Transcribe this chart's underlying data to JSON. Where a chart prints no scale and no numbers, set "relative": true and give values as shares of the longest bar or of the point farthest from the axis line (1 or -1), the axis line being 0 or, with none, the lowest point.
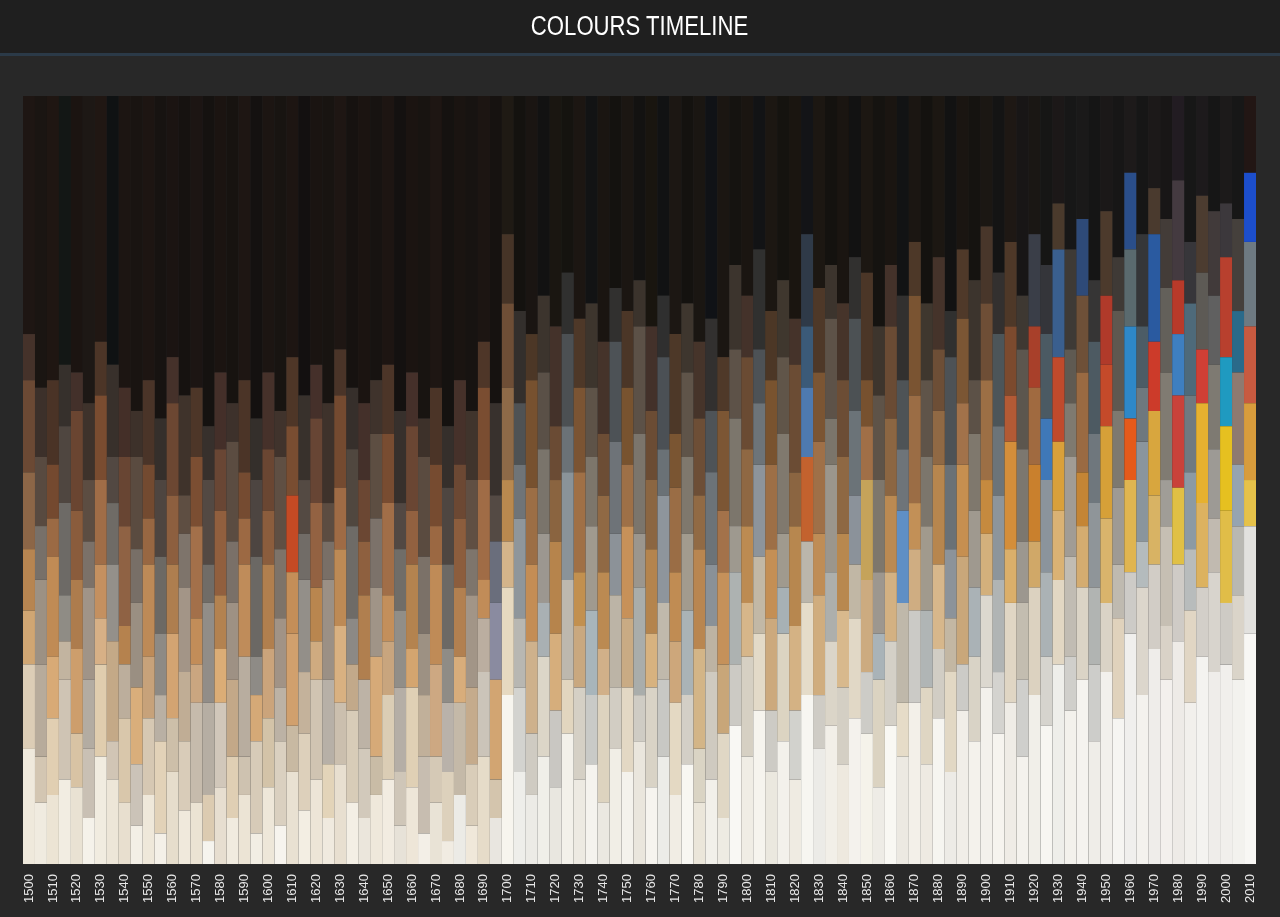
{
  "chart_data": {
    "type": "bar",
    "title": "COLOURS TIMELINE",
    "relative": true,
    "stacked": true,
    "categories": [
      "1500",
      null,
      "1510",
      null,
      "1520",
      null,
      "1530",
      null,
      "1540",
      null,
      "1550",
      null,
      "1560",
      null,
      "1570",
      null,
      "1580",
      null,
      "1590",
      null,
      "1600",
      null,
      "1610",
      null,
      "1620",
      null,
      "1630",
      null,
      "1640",
      null,
      "1650",
      null,
      "1660",
      null,
      "1670",
      null,
      "1680",
      null,
      "1690",
      null,
      "1700",
      null,
      "1710",
      null,
      "1720",
      null,
      "1730",
      null,
      "1740",
      null,
      "1750",
      null,
      "1760",
      null,
      "1770",
      null,
      "1780",
      null,
      "1790",
      null,
      "1800",
      null,
      "1810",
      null,
      "1820",
      null,
      "1830",
      null,
      "1840",
      null,
      "1850",
      null,
      "1860",
      null,
      "1870",
      null,
      "1880",
      null,
      "1890",
      null,
      "1900",
      null,
      "1910",
      null,
      "1920",
      null,
      "1930",
      null,
      "1940",
      null,
      "1950",
      null,
      "1960",
      null,
      "1970",
      null,
      "1980",
      null,
      "1990",
      null,
      "2000",
      null,
      "2010"
    ],
    "series": [
      {
        "values": [
          0.15,
          0.08,
          0.09,
          0.11,
          0.1,
          0.06,
          0.14,
          0.11,
          0.08,
          0.05,
          0.09,
          0.04,
          0.12,
          0.07,
          0.08,
          0.03,
          0.1,
          0.06,
          0.09,
          0.04,
          0.1,
          0.05,
          0.12,
          0.07,
          0.11,
          0.06,
          0.13,
          0.08,
          0.06,
          0.09,
          0.11,
          0.05,
          0.1,
          0.04,
          0.08,
          0.03,
          0.09,
          0.05,
          0.14,
          0.06,
          0.22,
          0.12,
          0.09,
          0.14,
          0.1,
          0.17,
          0.11,
          0.13,
          0.08,
          0.15,
          0.12,
          0.16,
          0.1,
          0.14,
          0.09,
          0.13,
          0.08,
          0.11,
          0.06,
          0.18,
          0.14,
          0.2,
          0.12,
          0.16,
          0.11,
          0.22,
          0.15,
          0.18,
          0.13,
          0.19,
          0.17,
          0.1,
          0.18,
          0.14,
          0.21,
          0.13,
          0.19,
          0.12,
          0.2,
          0.16,
          0.23,
          0.17,
          0.21,
          0.14,
          0.22,
          0.18,
          0.26,
          0.2,
          0.24,
          0.16,
          0.25,
          0.19,
          0.3,
          0.22,
          0.28,
          0.24,
          0.29,
          0.21,
          0.27,
          0.25,
          0.26,
          0.24,
          0.3
        ],
        "colors": [
          "#efe9dc",
          "#f0ebe0",
          "#ece4d4",
          "#f2ede2",
          "#e9e2d3",
          "#f5f2ea",
          "#f1ece0",
          "#ede6d8",
          "#e8dfcf",
          "#f3efe6",
          "#efe8da",
          "#f4f0e8",
          "#e6ddcc",
          "#f0e9dc",
          "#ebe3d3",
          "#f6f4ee",
          "#e7ded0",
          "#f1ebdf",
          "#ece4d5",
          "#f2eee4",
          "#eee7d9",
          "#f7f4ee",
          "#e9e1d2",
          "#f3eee3",
          "#ede5d7",
          "#f0eadf",
          "#e8dfd0",
          "#f4efe5",
          "#ebe6dc",
          "#efe8db",
          "#f2ece1",
          "#e7e2d8",
          "#eee6d8",
          "#f3efe7",
          "#e9e3d6",
          "#f1ece2",
          "#ecebe6",
          "#f0e8da",
          "#e6dcc9",
          "#e9e6e0",
          "#f7f5ee",
          "#eeeeea",
          "#ecebe6",
          "#f0efe9",
          "#e9e7e0",
          "#f3f1ea",
          "#edeae2",
          "#f5f3ee",
          "#ebe8e1",
          "#f1eee6",
          "#f4f2ec",
          "#eae6dd",
          "#f6f4ef",
          "#ecece8",
          "#f1ede4",
          "#f8f7f2",
          "#ebe6da",
          "#f2f0ea",
          "#eeebe3",
          "#f9f8f4",
          "#f0ede5",
          "#f6f4ee",
          "#ebe8df",
          "#f3f1eb",
          "#efebe2",
          "#f7f6f1",
          "#ecebe7",
          "#f2efe8",
          "#eee9df",
          "#f4f2ed",
          "#f5f3ea",
          "#eeece6",
          "#f9f8f3",
          "#ece9e2",
          "#f3f0e9",
          "#eeeae2",
          "#f6f5f0",
          "#edebe6",
          "#f1eee8",
          "#f4f2ec",
          "#f3f1ec",
          "#f6f4ef",
          "#efece6",
          "#f4f2ed",
          "#f1efe9",
          "#f7f6f2",
          "#eeeeea",
          "#f3f1ec",
          "#f5f3ef",
          "#efede8",
          "#f2f0ec",
          "#f6f5f2",
          "#f0efed",
          "#f4f2ee",
          "#efedea",
          "#f3f0ed",
          "#eeebe7",
          "#f2f0ec",
          "#f4f3f0",
          "#efedea",
          "#f1efec",
          "#f3f2ee",
          "#f8f7f4"
        ]
      },
      {
        "values": [
          0.11,
          0.06,
          0.1,
          0.13,
          0.07,
          0.09,
          0.12,
          0.05,
          0.11,
          0.08,
          0.1,
          0.12,
          0.07,
          0.09,
          0.13,
          0.06,
          0.11,
          0.08,
          0.05,
          0.12,
          0.09,
          0.11,
          0.06,
          0.1,
          0.13,
          0.07,
          0.08,
          0.12,
          0.09,
          0.05,
          0.11,
          0.07,
          0.13,
          0.1,
          0.06,
          0.09,
          0.12,
          0.08,
          0.11,
          0.05,
          0.14,
          0.11,
          0.08,
          0.13,
          0.1,
          0.07,
          0.12,
          0.09,
          0.14,
          0.08,
          0.11,
          0.06,
          0.13,
          0.1,
          0.12,
          0.09,
          0.07,
          0.14,
          0.11,
          0.08,
          0.13,
          0.1,
          0.08,
          0.14,
          0.09,
          0.12,
          0.07,
          0.11,
          0.1,
          0.13,
          0.08,
          0.14,
          0.11,
          0.07,
          0.12,
          0.1,
          0.09,
          0.13,
          0.06,
          0.11,
          0.12,
          0.08,
          0.13,
          0.1,
          0.14,
          0.09,
          0.11,
          0.07,
          0.12,
          0.1,
          0.09,
          0.13,
          0.08,
          0.14,
          0.11,
          0.07,
          0.1,
          0.12,
          0.09,
          0.13,
          0.08,
          0.11,
          0.14
        ],
        "colors": [
          "#dccdb6",
          "#d3c6b2",
          "#e1cfb2",
          "#cfc4b4",
          "#d8c3a4",
          "#c9c0b4",
          "#e0cdae",
          "#d1c5b5",
          "#d9c7ab",
          "#cbc3b8",
          "#d6c8b3",
          "#e2d2b8",
          "#cdbfa9",
          "#d9ccb9",
          "#c6bbac",
          "#dccbb1",
          "#d1c7ba",
          "#e0cfb4",
          "#cec2b0",
          "#d7cbb8",
          "#d3c3a8",
          "#dad0c0",
          "#c8b9a2",
          "#ddd0bb",
          "#d0c4b2",
          "#e3d4b9",
          "#cbbfae",
          "#d8ccb8",
          "#d2c9bb",
          "#c9bca6",
          "#dbcdb5",
          "#cfc6b8",
          "#e0d0b5",
          "#c7bdb0",
          "#d5c9b6",
          "#ddd1bc",
          "#c4b9a8",
          "#d9cdb9",
          "#cbc4b9",
          "#d4c5ad",
          "#e6d9c0",
          "#d3d3cf",
          "#cfcbc2",
          "#dcd6c8",
          "#c9c7c2",
          "#e2d6bf",
          "#d5d0c5",
          "#c9cac7",
          "#ddd3bf",
          "#d2cdc3",
          "#e3d8c4",
          "#cfccc4",
          "#d9d3c6",
          "#c8c8c4",
          "#e4d9c3",
          "#d3cfc6",
          "#dad4c4",
          "#cfcac0",
          "#e0d7c5",
          "#cccac4",
          "#d6d0c3",
          "#e3dac8",
          "#cdcbc5",
          "#dcd4c2",
          "#d2d2cd",
          "#e5dcc9",
          "#cfccc5",
          "#dbd5c8",
          "#d4cfc4",
          "#e1d8c6",
          "#cdccc7",
          "#dbd3c1",
          "#d4d0c7",
          "#e6dcc8",
          "#cbcac6",
          "#dfd6c3",
          "#d1cdc4",
          "#e2d8c4",
          "#cccbc7",
          "#d9d3c6",
          "#dcd8cf",
          "#d4d3cf",
          "#e0d6c4",
          "#cfcfcc",
          "#dcd2c0",
          "#d6d4ce",
          "#e2d7c3",
          "#d0cfcb",
          "#dbd4c6",
          "#cdcdca",
          "#dad3c6",
          "#e0d2bc",
          "#cdcbc7",
          "#dcd6cc",
          "#d2cdc6",
          "#d9d2c7",
          "#cfcbc6",
          "#e1d6c4",
          "#d3cfc9",
          "#d8d4cd",
          "#cecbc5",
          "#dad4c9",
          "#e2e1de"
        ]
      },
      {
        "values": [
          0.07,
          0.12,
          0.08,
          0.05,
          0.11,
          0.09,
          0.06,
          0.13,
          0.07,
          0.1,
          0.08,
          0.06,
          0.11,
          0.09,
          0.05,
          0.12,
          0.07,
          0.1,
          0.13,
          0.06,
          0.09,
          0.07,
          0.12,
          0.08,
          0.05,
          0.11,
          0.1,
          0.06,
          0.09,
          0.13,
          0.07,
          0.11,
          0.05,
          0.08,
          0.12,
          0.09,
          0.06,
          0.1,
          0.07,
          0.13,
          0.06,
          0.09,
          0.12,
          0.07,
          0.1,
          0.13,
          0.08,
          0.11,
          0.06,
          0.12,
          0.09,
          0.14,
          0.07,
          0.1,
          0.08,
          0.11,
          0.13,
          0.06,
          0.09,
          0.12,
          0.07,
          0.1,
          0.12,
          0.06,
          0.11,
          0.08,
          0.13,
          0.09,
          0.1,
          0.07,
          0.12,
          0.06,
          0.09,
          0.13,
          0.08,
          0.1,
          0.11,
          0.07,
          0.14,
          0.09,
          0.08,
          0.12,
          0.07,
          0.1,
          0.06,
          0.11,
          0.09,
          0.13,
          0.08,
          0.1,
          0.11,
          0.07,
          0.12,
          0.06,
          0.09,
          0.13,
          0.1,
          0.08,
          0.11,
          0.07,
          0.12,
          0.09,
          0.06
        ],
        "colors": [
          "#d0a673",
          "#b7ab9b",
          "#d8aa76",
          "#c2b4a0",
          "#cd9e6c",
          "#b3aca2",
          "#d7b086",
          "#c4a987",
          "#bcae9c",
          "#d9ae7b",
          "#c7a27a",
          "#b9b0a4",
          "#d3a472",
          "#c0ad95",
          "#caa680",
          "#b6aea3",
          "#dbad76",
          "#c3a888",
          "#b8ad9f",
          "#d5a977",
          "#cba47b",
          "#bcb2a5",
          "#d1a06d",
          "#c4b29b",
          "#cfab80",
          "#b7b0a7",
          "#d9b181",
          "#c2a98a",
          "#bdb3a6",
          "#d6aa78",
          "#c8a57e",
          "#b5aea6",
          "#d4a56f",
          "#c1b09a",
          "#cda882",
          "#b9b2aa",
          "#d8ad7b",
          "#c5ab8c",
          "#bbaea0",
          "#d2a572",
          "#d4b48a",
          "#b8b7b2",
          "#ceb18c",
          "#a9b0b3",
          "#d6ae7c",
          "#bdb8ae",
          "#c9a87f",
          "#a8b5bb",
          "#d1b089",
          "#bcb4a6",
          "#c9ab84",
          "#a9adab",
          "#d7b27f",
          "#c0b9ac",
          "#cda77b",
          "#aab3b6",
          "#d3b587",
          "#bdb3a3",
          "#c8a679",
          "#adb2b1",
          "#d6b68a",
          "#c2b8a6",
          "#cca97d",
          "#a7b1b5",
          "#d4b284",
          "#bbb6ab",
          "#d0ad7e",
          "#adafac",
          "#d8b98d",
          "#c1b7a5",
          "#ccab80",
          "#a9b3b8",
          "#d3b182",
          "#bfb8aa",
          "#cfad82",
          "#b0b5b5",
          "#d7b78b",
          "#c3b7a3",
          "#c9a77a",
          "#aab2b6",
          "#d3b07c",
          "#b0b4b4",
          "#dbaf6a",
          "#c3bdb0",
          "#d0a868",
          "#abb2b5",
          "#dab274",
          "#c1bcb3",
          "#d4ac70",
          "#b1b4b2",
          "#d9b46c",
          "#bfbab0",
          "#e0b550",
          "#b4bbbd",
          "#d8b364",
          "#c6bfb3",
          "#e0c045",
          "#b8bcbc",
          "#dcb260",
          "#c1bab0",
          "#e0bd48",
          "#b9b8b2",
          "#e6c24a"
        ]
      },
      {
        "values": [
          0.08,
          0.11,
          0.13,
          0.06,
          0.09,
          0.12,
          0.07,
          0.1,
          0.05,
          0.11,
          0.12,
          0.08,
          0.09,
          0.11,
          0.06,
          0.13,
          0.07,
          0.1,
          0.12,
          0.05,
          0.11,
          0.09,
          0.08,
          0.12,
          0.07,
          0.13,
          0.1,
          0.06,
          0.11,
          0.09,
          0.06,
          0.1,
          0.11,
          0.08,
          0.13,
          0.07,
          0.09,
          0.12,
          0.05,
          0.1,
          0.08,
          0.13,
          0.1,
          0.09,
          0.12,
          0.14,
          0.07,
          0.11,
          0.1,
          0.08,
          0.12,
          0.07,
          0.11,
          0.14,
          0.09,
          0.1,
          0.13,
          0.08,
          0.12,
          0.06,
          0.1,
          0.12,
          0.09,
          0.07,
          0.13,
          0.11,
          0.08,
          0.14,
          0.1,
          0.09,
          0.13,
          0.08,
          0.1,
          0.12,
          0.06,
          0.11,
          0.13,
          0.09,
          0.12,
          0.1,
          0.07,
          0.11,
          0.14,
          0.08,
          0.1,
          0.12,
          0.09,
          0.13,
          0.07,
          0.11,
          0.12,
          0.1,
          0.08,
          0.13,
          0.11,
          0.06,
          0.12,
          0.1,
          0.13,
          0.09,
          0.11,
          0.08,
          0.1
        ],
        "colors": [
          "#b78551",
          "#9c9184",
          "#c08b55",
          "#8f8c85",
          "#ad7c4d",
          "#a09488",
          "#c49060",
          "#94908a",
          "#b5824e",
          "#9a8f82",
          "#bd8a57",
          "#8d8a85",
          "#ae7e4f",
          "#a39587",
          "#c28d59",
          "#918d88",
          "#b38250",
          "#9e9184",
          "#bf8c5a",
          "#8e8b86",
          "#b17f4e",
          "#a19386",
          "#c48e58",
          "#938f89",
          "#b9864f",
          "#9b9085",
          "#bd8a55",
          "#8c8985",
          "#b07f4f",
          "#a09487",
          "#c38f5b",
          "#918e88",
          "#b4834f",
          "#9d9183",
          "#bf8b57",
          "#8f8c86",
          "#b28050",
          "#a29587",
          "#c18c58",
          "#8a8ba0",
          "#b9894f",
          "#8f969b",
          "#c48d55",
          "#9c9790",
          "#b6844c",
          "#8a9399",
          "#c2904f",
          "#a09a8f",
          "#bb8a52",
          "#8c9298",
          "#c79159",
          "#9b968e",
          "#b4844d",
          "#8e959c",
          "#c08c53",
          "#a29b8e",
          "#b98650",
          "#8a9197",
          "#c5915a",
          "#9e998f",
          "#bc8b52",
          "#8d949b",
          "#c48f55",
          "#a09a8e",
          "#b7874f",
          "#c3622e",
          "#bf8d56",
          "#9b968d",
          "#b8884f",
          "#8b929a",
          "#c5a35a",
          "#9d978f",
          "#bb8a52",
          "#5f8fc5",
          "#c29057",
          "#a19a8d",
          "#b7864e",
          "#8c939a",
          "#c68f50",
          "#9f998f",
          "#c58a3f",
          "#8d959b",
          "#d48e3a",
          "#9c978f",
          "#c9802d",
          "#8b949c",
          "#d9a03a",
          "#a19c95",
          "#c48535",
          "#8f9599",
          "#d6a038",
          "#9e9a94",
          "#e55a1a",
          "#8a959d",
          "#d8a63e",
          "#a09d97",
          "#c9423a",
          "#8c9aa4",
          "#e6b12f",
          "#9d9a95",
          "#e6c020",
          "#96a4b0",
          "#d89c3c"
        ]
      },
      {
        "values": [
          0.1,
          0.07,
          0.05,
          0.12,
          0.09,
          0.06,
          0.11,
          0.08,
          0.13,
          0.07,
          0.06,
          0.1,
          0.09,
          0.07,
          0.12,
          0.05,
          0.11,
          0.08,
          0.06,
          0.13,
          0.07,
          0.09,
          0.1,
          0.06,
          0.11,
          0.05,
          0.08,
          0.12,
          0.07,
          0.09,
          0.12,
          0.08,
          0.07,
          0.1,
          0.05,
          0.11,
          0.09,
          0.06,
          0.13,
          0.08,
          0.12,
          0.07,
          0.1,
          0.11,
          0.08,
          0.06,
          0.13,
          0.09,
          0.1,
          0.12,
          0.08,
          0.13,
          0.09,
          0.06,
          0.11,
          0.1,
          0.07,
          0.12,
          0.08,
          0.14,
          0.1,
          0.08,
          0.11,
          0.13,
          0.07,
          0.09,
          0.12,
          0.06,
          0.1,
          0.11,
          0.07,
          0.12,
          0.1,
          0.08,
          0.14,
          0.09,
          0.07,
          0.11,
          0.08,
          0.1,
          0.13,
          0.09,
          0.06,
          0.12,
          0.1,
          0.08,
          0.11,
          0.07,
          0.13,
          0.09,
          0.08,
          0.1,
          0.12,
          0.07,
          0.09,
          0.14,
          0.08,
          0.1,
          0.07,
          0.11,
          0.09,
          0.12,
          0.1
        ],
        "colors": [
          "#8c6647",
          "#777069",
          "#9b6a44",
          "#6d6a66",
          "#8a5c3c",
          "#7b7169",
          "#a06d47",
          "#6f6b66",
          "#8f6244",
          "#786f67",
          "#986742",
          "#6c6964",
          "#8d5f3f",
          "#7e746b",
          "#a3704a",
          "#706c67",
          "#915f3e",
          "#7a7068",
          "#9c6943",
          "#6b6864",
          "#8b5d3d",
          "#7d7369",
          "#c54a24",
          "#716c67",
          "#936242",
          "#796f67",
          "#9f6b45",
          "#6e6b67",
          "#8e603f",
          "#7c726a",
          "#a16e48",
          "#706d68",
          "#926140",
          "#7b7168",
          "#9b6842",
          "#6c6965",
          "#8c5d3d",
          "#7e756c",
          "#a06c46",
          "#6a6e7c",
          "#8e6a48",
          "#6f7478",
          "#9c6e45",
          "#7a746b",
          "#8a6440",
          "#6b7277",
          "#a07046",
          "#7d766b",
          "#906944",
          "#6e7378",
          "#9e7047",
          "#7b756c",
          "#8b6642",
          "#6a7176",
          "#9a6d45",
          "#7f786d",
          "#916a44",
          "#6c7378",
          "#a3724a",
          "#7c766c",
          "#8f6843",
          "#6d7479",
          "#9d6f46",
          "#80796e",
          "#8b6541",
          "#4e7ab0",
          "#9f7048",
          "#7b756b",
          "#8e6843",
          "#6b7378",
          "#a06f47",
          "#7e776c",
          "#8c6642",
          "#6e7479",
          "#9b6d45",
          "#7c766c",
          "#906944",
          "#6a7176",
          "#a2724a",
          "#7f786d",
          "#9c6f45",
          "#6c7479",
          "#b35a35",
          "#7c776f",
          "#a06a40",
          "#3f78b8",
          "#c04a2c",
          "#7f7a70",
          "#9a6a42",
          "#6f777d",
          "#c44a2a",
          "#7d7970",
          "#2e88c8",
          "#6e787e",
          "#cc3b2a",
          "#807b72",
          "#3e7fc0",
          "#6f7a80",
          "#d03f35",
          "#7e7a72",
          "#1f9ac0",
          "#8e7a70",
          "#c85a40"
        ]
      },
      {
        "values": [
          0.12,
          0.09,
          0.07,
          0.1,
          0.13,
          0.08,
          0.11,
          0.06,
          0.09,
          0.12,
          0.07,
          0.1,
          0.12,
          0.05,
          0.09,
          0.11,
          0.08,
          0.13,
          0.06,
          0.1,
          0.08,
          0.12,
          0.09,
          0.07,
          0.11,
          0.05,
          0.12,
          0.1,
          0.08,
          0.11,
          0.09,
          0.06,
          0.11,
          0.13,
          0.08,
          0.1,
          0.07,
          0.09,
          0.12,
          0.06,
          0.11,
          0.08,
          0.14,
          0.1,
          0.07,
          0.12,
          0.11,
          0.09,
          0.08,
          0.13,
          0.1,
          0.14,
          0.09,
          0.12,
          0.07,
          0.11,
          0.1,
          0.08,
          0.13,
          0.09,
          0.12,
          0.07,
          0.11,
          0.1,
          0.14,
          0.08,
          0.09,
          0.13,
          0.1,
          0.12,
          0.06,
          0.11,
          0.12,
          0.09,
          0.13,
          0.1,
          0.08,
          0.14,
          0.11,
          0.07,
          0.1,
          0.12,
          0.09,
          0.13,
          0.08,
          0.11,
          0.14,
          0.07,
          0.1,
          0.12,
          0.09,
          0.13,
          0.1,
          0.08,
          0.14,
          0.11,
          0.07,
          0.12,
          0.1,
          0.09,
          0.13,
          0.08,
          0.11
        ],
        "colors": [
          "#6b4934",
          "#584a40",
          "#74492f",
          "#4f4640",
          "#6a4531",
          "#5c4d42",
          "#7a4c30",
          "#524842",
          "#684533",
          "#5a4b40",
          "#734a30",
          "#4e4540",
          "#6c4732",
          "#5e4e42",
          "#7b4e32",
          "#534943",
          "#694634",
          "#5b4c41",
          "#754b31",
          "#4d4541",
          "#6a4632",
          "#5f4f43",
          "#794d31",
          "#544a43",
          "#674534",
          "#5c4c41",
          "#744a30",
          "#50473f",
          "#6b4733",
          "#5d4e42",
          "#784c31",
          "#524843",
          "#6a4633",
          "#5a4b40",
          "#764b30",
          "#4e4641",
          "#6c4833",
          "#604f43",
          "#7a4d31",
          "#544a44",
          "#6e4e36",
          "#4f5254",
          "#77512f",
          "#5a5047",
          "#6a4b34",
          "#4c5053",
          "#7b5433",
          "#5e5348",
          "#6c4d35",
          "#4d5256",
          "#78532f",
          "#5c5147",
          "#6b4c34",
          "#4b5055",
          "#7a5532",
          "#5f5449",
          "#6d4e36",
          "#4e5357",
          "#7c5634",
          "#5d5248",
          "#6a4b33",
          "#4d5256",
          "#79532f",
          "#605549",
          "#6b4c34",
          "#3b5a78",
          "#7b5533",
          "#5d5248",
          "#6c4d35",
          "#4c5154",
          "#77512f",
          "#5e5348",
          "#6a4b34",
          "#4e5356",
          "#7a5432",
          "#5f5449",
          "#6d4e36",
          "#4d5256",
          "#7b5634",
          "#5c5147",
          "#6e4e36",
          "#4c5559",
          "#7c4a2e",
          "#5c564e",
          "#a8402a",
          "#4b5a63",
          "#3a5f8e",
          "#5f5a52",
          "#6e5038",
          "#4d5a62",
          "#b03a2a",
          "#5e5850",
          "#5a6a6e",
          "#4c5c66",
          "#2a5aa0",
          "#63605a",
          "#b83a2a",
          "#4e6a7a",
          "#5d5a55",
          "#606060",
          "#b8402e",
          "#2a6a8a",
          "#6e7a82"
        ]
      },
      {
        "values": [
          0.06,
          0.09,
          0.11,
          0.08,
          0.05,
          0.1,
          0.07,
          0.12,
          0.09,
          0.06,
          0.11,
          0.08,
          0.06,
          0.13,
          0.09,
          0.07,
          0.1,
          0.05,
          0.12,
          0.08,
          0.1,
          0.06,
          0.09,
          0.11,
          0.07,
          0.13,
          0.06,
          0.08,
          0.1,
          0.07,
          0.09,
          0.12,
          0.07,
          0.05,
          0.1,
          0.08,
          0.11,
          0.09,
          0.06,
          0.12,
          0.09,
          0.12,
          0.06,
          0.1,
          0.13,
          0.08,
          0.09,
          0.11,
          0.12,
          0.07,
          0.1,
          0.06,
          0.11,
          0.08,
          0.13,
          0.09,
          0.1,
          0.12,
          0.07,
          0.11,
          0.08,
          0.13,
          0.09,
          0.1,
          0.06,
          0.12,
          0.11,
          0.07,
          0.1,
          0.08,
          0.14,
          0.09,
          0.08,
          0.11,
          0.07,
          0.1,
          0.12,
          0.06,
          0.09,
          0.13,
          0.1,
          0.08,
          0.11,
          0.07,
          0.12,
          0.09,
          0.06,
          0.13,
          0.1,
          0.08,
          0.11,
          0.07,
          0.1,
          0.12,
          0.06,
          0.09,
          0.13,
          0.08,
          0.1,
          0.11,
          0.07,
          0.12,
          0.09
        ],
        "colors": [
          "#45322a",
          "#3c302a",
          "#4a3326",
          "#36302c",
          "#43302a",
          "#3e322b",
          "#4c3527",
          "#38302b",
          "#442f28",
          "#3d312a",
          "#4a3428",
          "#352f2b",
          "#45312a",
          "#3f332b",
          "#4d3628",
          "#37302c",
          "#442f29",
          "#3d312b",
          "#4b3427",
          "#342f2b",
          "#46312a",
          "#40332c",
          "#4e3627",
          "#38312c",
          "#45302a",
          "#3e322b",
          "#4a3428",
          "#362f2b",
          "#44302a",
          "#3f332c",
          "#4c3528",
          "#37302c",
          "#45302a",
          "#3d312a",
          "#4b3427",
          "#352f2b",
          "#46312a",
          "#40342c",
          "#4e3628",
          "#38312d",
          "#463427",
          "#332f2c",
          "#4c3726",
          "#3c342d",
          "#44322a",
          "#30302f",
          "#4e3828",
          "#3d352d",
          "#45332a",
          "#31302f",
          "#4b3627",
          "#3b332c",
          "#43312a",
          "#2f2f2f",
          "#4d3828",
          "#3e362e",
          "#46342a",
          "#32302f",
          "#4f3929",
          "#3c342d",
          "#44322a",
          "#30302f",
          "#4c3726",
          "#3f372e",
          "#45332a",
          "#2f3a48",
          "#4e3828",
          "#3c342d",
          "#46342a",
          "#31302f",
          "#4b3627",
          "#3d352d",
          "#44322a",
          "#32302f",
          "#4d3828",
          "#3f372e",
          "#45332a",
          "#30302f",
          "#4f3929",
          "#3c342d",
          "#48362a",
          "#33302f",
          "#4e3828",
          "#3e3832",
          "#3a3e48",
          "#34353a",
          "#4a3a2c",
          "#3e3a36",
          "#2e4a78",
          "#363535",
          "#4c3a2c",
          "#3f3a36",
          "#2a4e8a",
          "#353638",
          "#4a3a2e",
          "#433c38",
          "#443a40",
          "#37363a",
          "#4c3c30",
          "#413a3a",
          "#3c383c",
          "#45403c",
          "#1c4ecc"
        ]
      },
      {
        "values": [
          0.31,
          0.38,
          0.37,
          0.35,
          0.36,
          0.4,
          0.32,
          0.35,
          0.38,
          0.41,
          0.37,
          0.42,
          0.34,
          0.39,
          0.38,
          0.43,
          0.36,
          0.4,
          0.37,
          0.42,
          0.36,
          0.41,
          0.34,
          0.39,
          0.35,
          0.4,
          0.33,
          0.38,
          0.4,
          0.37,
          0.35,
          0.41,
          0.36,
          0.42,
          0.38,
          0.43,
          0.37,
          0.41,
          0.32,
          0.4,
          0.18,
          0.28,
          0.31,
          0.26,
          0.3,
          0.23,
          0.29,
          0.27,
          0.32,
          0.25,
          0.28,
          0.24,
          0.3,
          0.26,
          0.31,
          0.27,
          0.32,
          0.29,
          0.34,
          0.22,
          0.26,
          0.2,
          0.28,
          0.24,
          0.29,
          0.18,
          0.25,
          0.22,
          0.27,
          0.21,
          0.23,
          0.3,
          0.22,
          0.26,
          0.19,
          0.27,
          0.21,
          0.28,
          0.2,
          0.24,
          0.17,
          0.23,
          0.19,
          0.26,
          0.18,
          0.22,
          0.14,
          0.2,
          0.16,
          0.24,
          0.15,
          0.21,
          0.1,
          0.18,
          0.12,
          0.16,
          0.11,
          0.19,
          0.13,
          0.15,
          0.14,
          0.16,
          0.1
        ],
        "colors": [
          "#1e1613",
          "#1a1512",
          "#1f1612",
          "#131715",
          "#1b1411",
          "#1d1815",
          "#201713",
          "#0f1213",
          "#1c1512",
          "#191411",
          "#1d1512",
          "#171311",
          "#1b1412",
          "#161210",
          "#1c1513",
          "#151210",
          "#1b1411",
          "#171310",
          "#1e1613",
          "#141110",
          "#1c1512",
          "#181411",
          "#1d1512",
          "#131010",
          "#1a1411",
          "#181411",
          "#1e1613",
          "#161210",
          "#1b1411",
          "#171311",
          "#1d1512",
          "#141110",
          "#1b1411",
          "#181411",
          "#1e1613",
          "#151210",
          "#1a1411",
          "#171311",
          "#1c1512",
          "#161210",
          "#1f1a14",
          "#14120f",
          "#1a1512",
          "#121212",
          "#1a1611",
          "#15130f",
          "#1c1612",
          "#121314",
          "#1a1511",
          "#14120f",
          "#1b1612",
          "#131211",
          "#19150f",
          "#111213",
          "#1c1713",
          "#14120f",
          "#1a1612",
          "#101216",
          "#1b1612",
          "#151310",
          "#1a1511",
          "#121315",
          "#1c1712",
          "#15130f",
          "#1a1510",
          "#131417",
          "#1c1712",
          "#14120f",
          "#1a1511",
          "#121212",
          "#1c1712",
          "#151310",
          "#1a1511",
          "#121314",
          "#1b1612",
          "#14120f",
          "#1c1712",
          "#121212",
          "#1a1511",
          "#151310",
          "#1b1713",
          "#141414",
          "#1e1814",
          "#181616",
          "#1a1714",
          "#161615",
          "#1c1818",
          "#171717",
          "#1a1919",
          "#151515",
          "#1b1818",
          "#171616",
          "#1d1a1a",
          "#161616",
          "#1c1919",
          "#181616",
          "#221c22",
          "#171717",
          "#1d1a1c",
          "#161616",
          "#1c1a1a",
          "#171717",
          "#221614"
        ]
      }
    ]
  }
}
